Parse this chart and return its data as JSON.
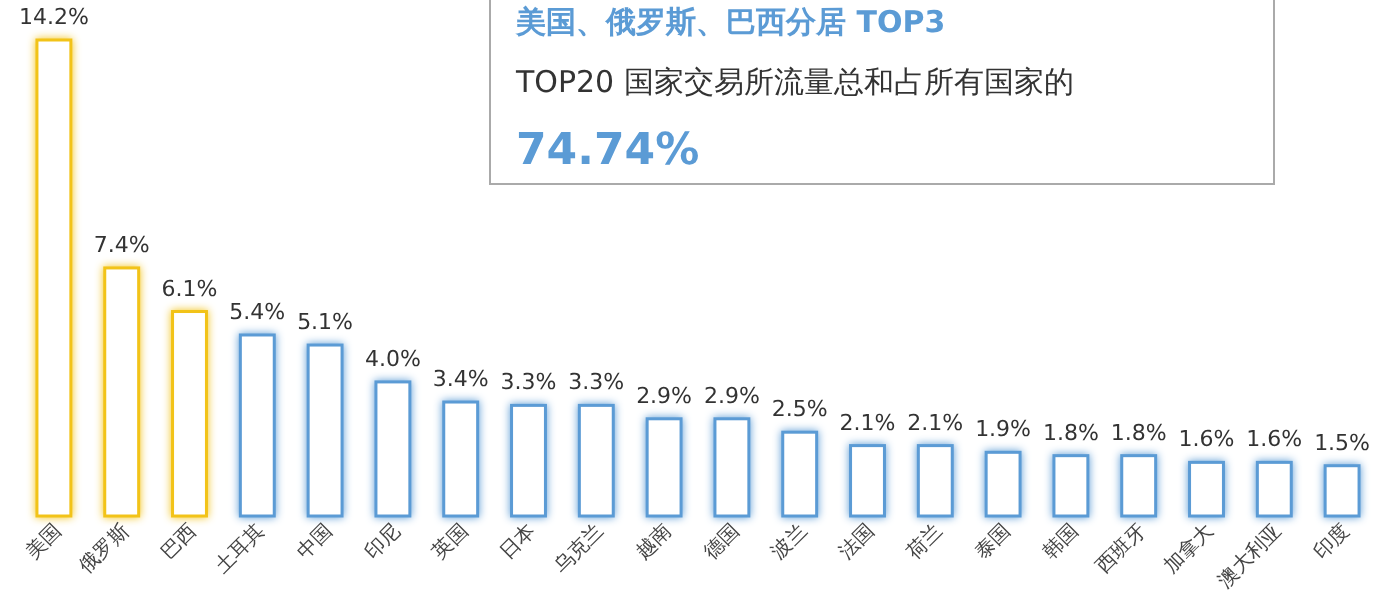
{
  "chart_data": {
    "type": "bar",
    "categories": [
      "美国",
      "俄罗斯",
      "巴西",
      "土耳其",
      "中国",
      "印尼",
      "英国",
      "日本",
      "乌克兰",
      "越南",
      "德国",
      "波兰",
      "法国",
      "荷兰",
      "泰国",
      "韩国",
      "西班牙",
      "加拿大",
      "澳大利亚",
      "印度"
    ],
    "values": [
      14.2,
      7.4,
      6.1,
      5.4,
      5.1,
      4.0,
      3.4,
      3.3,
      3.3,
      2.9,
      2.9,
      2.5,
      2.1,
      2.1,
      1.9,
      1.8,
      1.8,
      1.6,
      1.6,
      1.5
    ],
    "colors": [
      "#f2c318",
      "#f2c318",
      "#f2c318",
      "#5b9bd5",
      "#5b9bd5",
      "#5b9bd5",
      "#5b9bd5",
      "#5b9bd5",
      "#5b9bd5",
      "#5b9bd5",
      "#5b9bd5",
      "#5b9bd5",
      "#5b9bd5",
      "#5b9bd5",
      "#5b9bd5",
      "#5b9bd5",
      "#5b9bd5",
      "#5b9bd5",
      "#5b9bd5",
      "#5b9bd5"
    ],
    "value_labels": [
      "14.2%",
      "7.4%",
      "6.1%",
      "5.4%",
      "5.1%",
      "4.0%",
      "3.4%",
      "3.3%",
      "3.3%",
      "2.9%",
      "2.9%",
      "2.5%",
      "2.1%",
      "2.1%",
      "1.9%",
      "1.8%",
      "1.8%",
      "1.6%",
      "1.6%",
      "1.5%"
    ],
    "annotations": [
      "美国、俄罗斯、巴西分居 TOP3",
      "TOP20  国家交易所流量总和占所有国家的",
      "74.74%"
    ]
  }
}
